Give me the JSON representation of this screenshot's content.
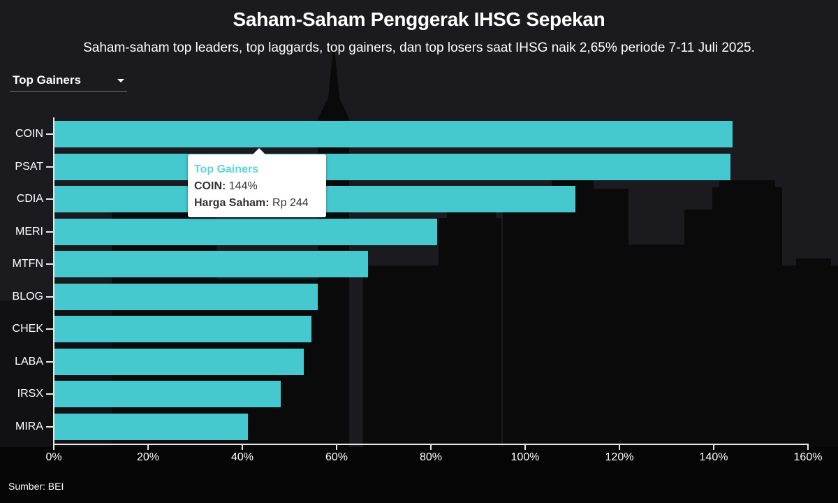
{
  "header": {
    "title": "Saham-Saham Penggerak IHSG Sepekan",
    "subtitle": "Saham-saham top leaders, top laggards, top gainers, dan top losers saat IHSG naik 2,65% periode 7-11 Juli 2025."
  },
  "dropdown": {
    "selected": "Top Gainers",
    "icon": "caret-down-icon"
  },
  "tooltip": {
    "title": "Top Gainers",
    "ticker_label": "COIN:",
    "ticker_value": "144%",
    "price_label": "Harga Saham:",
    "price_value": "Rp 244"
  },
  "footer": {
    "source": "Sumber: BEI"
  },
  "colors": {
    "bar": "#45c9cf",
    "background": "#1b1a1e",
    "tooltip_title": "#5fd3d8"
  },
  "chart_data": {
    "type": "bar",
    "orientation": "horizontal",
    "title": "Saham-Saham Penggerak IHSG Sepekan",
    "subtitle": "Saham-saham top leaders, top laggards, top gainers, dan top losers saat IHSG naik 2,65% periode 7-11 Juli 2025.",
    "series_name": "Top Gainers",
    "categories": [
      "COIN",
      "PSAT",
      "CDIA",
      "MERI",
      "MTFN",
      "BLOG",
      "CHEK",
      "LABA",
      "IRSX",
      "MIRA"
    ],
    "values": [
      144,
      143.5,
      110.7,
      81.3,
      66.7,
      56,
      54.7,
      53,
      48.1,
      41.2
    ],
    "unit": "%",
    "xlabel": "",
    "ylabel": "",
    "xlim": [
      0,
      160
    ],
    "x_ticks": [
      "0%",
      "20%",
      "40%",
      "60%",
      "80%",
      "100%",
      "120%",
      "140%",
      "160%"
    ],
    "grid": false,
    "legend": "none",
    "annotation": "Top Gainers / COIN: 144% / Harga Saham: Rp 244",
    "source": "Sumber: BEI"
  }
}
